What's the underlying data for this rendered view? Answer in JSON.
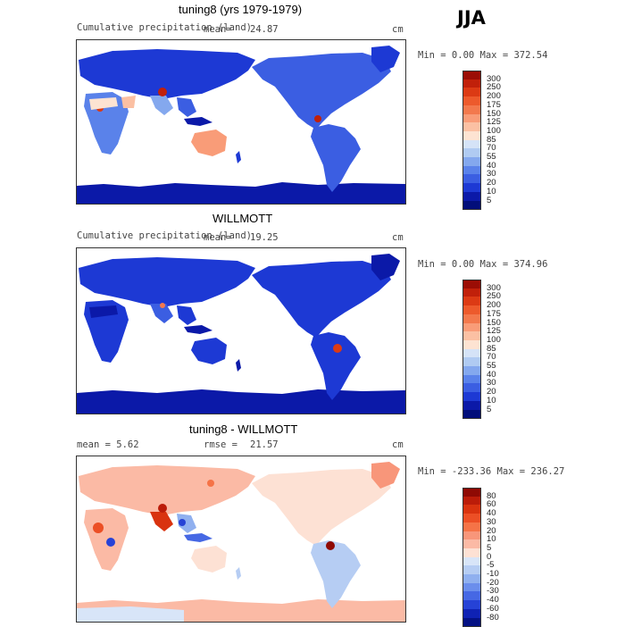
{
  "season": "JJA",
  "panels": [
    {
      "title": "tuning8 (yrs 1979-1979)",
      "left_label": "Cumulative precipitation (land)",
      "center_label": "mean=",
      "center_value": "24.87",
      "units": "cm",
      "range_text": "Min =    0.00 Max = 372.54",
      "palette": "precip",
      "levels": [
        "300",
        "250",
        "200",
        "175",
        "150",
        "125",
        "100",
        "85",
        "70",
        "55",
        "40",
        "30",
        "20",
        "10",
        "5"
      ],
      "colors": [
        "#9b0d05",
        "#c1200a",
        "#dc3a14",
        "#ed5a2c",
        "#f3794d",
        "#f99c78",
        "#fbc0a3",
        "#fde3d2",
        "#d5e3f7",
        "#b0cbf2",
        "#84a8ee",
        "#5a82ea",
        "#3b5ee2",
        "#1d39d4",
        "#0b19a8",
        "#020e7a"
      ]
    },
    {
      "title": "WILLMOTT",
      "left_label": "Cumulative precipitation (land)",
      "center_label": "mean=",
      "center_value": "19.25",
      "units": "cm",
      "range_text": "Min =    0.00 Max = 374.96",
      "palette": "precip",
      "levels": [
        "300",
        "250",
        "200",
        "175",
        "150",
        "125",
        "100",
        "85",
        "70",
        "55",
        "40",
        "30",
        "20",
        "10",
        "5"
      ],
      "colors": [
        "#9b0d05",
        "#c1200a",
        "#dc3a14",
        "#ed5a2c",
        "#f3794d",
        "#f99c78",
        "#fbc0a3",
        "#fde3d2",
        "#d5e3f7",
        "#b0cbf2",
        "#84a8ee",
        "#5a82ea",
        "#3b5ee2",
        "#1d39d4",
        "#0b19a8",
        "#020e7a"
      ]
    },
    {
      "title": "tuning8 - WILLMOTT",
      "left_label": "mean =     5.62",
      "center_label": "rmse =",
      "center_value": "21.57",
      "units": "cm",
      "range_text": "Min = -233.36 Max = 236.27",
      "palette": "diff",
      "levels": [
        "80",
        "60",
        "40",
        "30",
        "20",
        "10",
        "5",
        "0",
        "-5",
        "-10",
        "-20",
        "-30",
        "-40",
        "-60",
        "-80"
      ],
      "colors": [
        "#8f0a04",
        "#bb1c09",
        "#d9330f",
        "#ec4f25",
        "#f57347",
        "#f8967a",
        "#fbbaa5",
        "#fde1d4",
        "#d8e5f8",
        "#b6cdf3",
        "#90b0ef",
        "#6b8eec",
        "#4668e4",
        "#2642d6",
        "#0f22b4",
        "#041184"
      ]
    }
  ]
}
